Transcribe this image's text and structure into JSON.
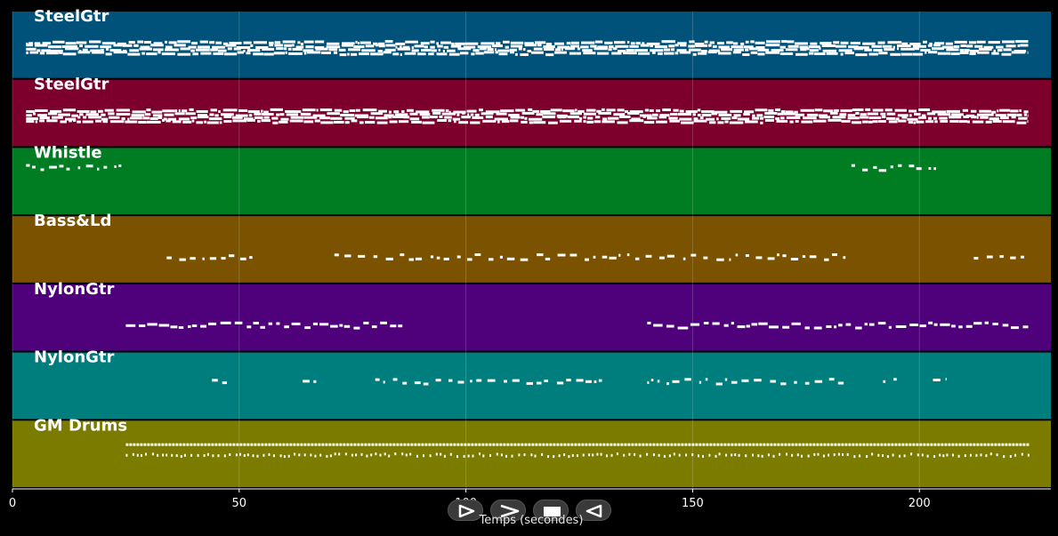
{
  "chart_data": {
    "type": "piano-roll",
    "xlabel": "Temps (secondes)",
    "xlim": [
      0,
      229
    ],
    "xticks": [
      0,
      50,
      100,
      150,
      200
    ],
    "grid": true,
    "tracks": [
      {
        "name": "SteelGtr",
        "color": "#00527a",
        "density": "dense",
        "segments": [
          [
            3,
            224
          ]
        ]
      },
      {
        "name": "SteelGtr",
        "color": "#7c002b",
        "density": "dense",
        "segments": [
          [
            3,
            224
          ]
        ]
      },
      {
        "name": "Whistle",
        "color": "#007d23",
        "density": "sparse",
        "segments": [
          [
            3,
            24
          ],
          [
            185,
            205
          ]
        ]
      },
      {
        "name": "Bass&Ld",
        "color": "#7b5200",
        "density": "sparse",
        "segments": [
          [
            34,
            53
          ],
          [
            71,
            184
          ],
          [
            212,
            224
          ]
        ]
      },
      {
        "name": "NylonGtr",
        "color": "#4f007b",
        "density": "medium",
        "segments": [
          [
            25,
            86
          ],
          [
            140,
            224
          ]
        ]
      },
      {
        "name": "NylonGtr",
        "color": "#007d7d",
        "density": "sparse",
        "segments": [
          [
            44,
            48
          ],
          [
            64,
            67
          ],
          [
            80,
            130
          ],
          [
            140,
            184
          ],
          [
            192,
            195
          ],
          [
            203,
            206
          ]
        ]
      },
      {
        "name": "GM Drums",
        "color": "#7b7b00",
        "density": "drums",
        "segments": [
          [
            25,
            224
          ]
        ]
      }
    ]
  },
  "controls": {
    "play_icon": "play-icon",
    "forward_icon": "fast-forward-icon",
    "stop_icon": "stop-icon",
    "rewind_icon": "rewind-icon"
  }
}
